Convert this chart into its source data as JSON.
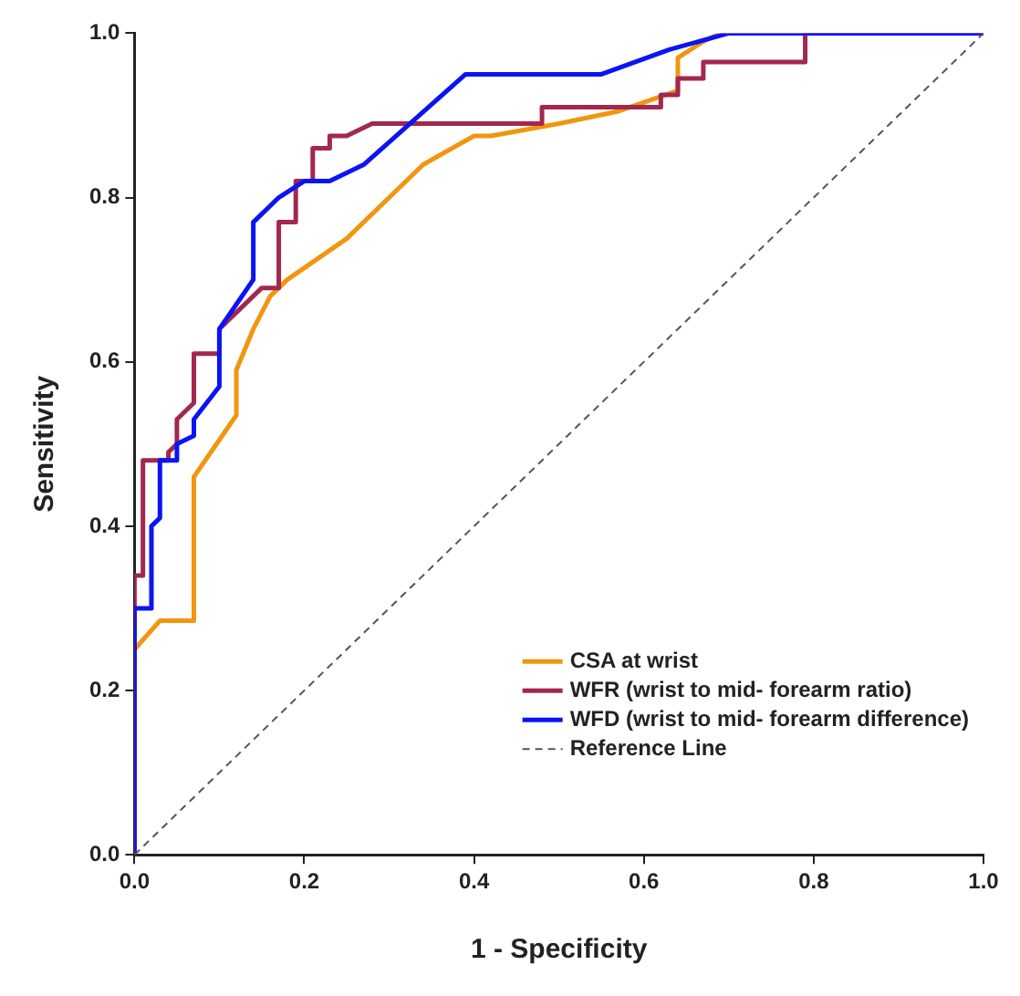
{
  "chart_data": {
    "type": "line",
    "xlabel": "1 - Specificity",
    "ylabel": "Sensitivity",
    "xlim": [
      0,
      1
    ],
    "ylim": [
      0,
      1
    ],
    "xticks": [
      {
        "value": 0,
        "label": "0.0"
      },
      {
        "value": 0.2,
        "label": "0.2"
      },
      {
        "value": 0.4,
        "label": "0.4"
      },
      {
        "value": 0.6,
        "label": "0.6"
      },
      {
        "value": 0.8,
        "label": "0.8"
      },
      {
        "value": 1,
        "label": "1.0"
      }
    ],
    "yticks": [
      {
        "value": 0,
        "label": "0.0"
      },
      {
        "value": 0.2,
        "label": "0.2"
      },
      {
        "value": 0.4,
        "label": "0.4"
      },
      {
        "value": 0.6,
        "label": "0.6"
      },
      {
        "value": 0.8,
        "label": "0.8"
      },
      {
        "value": 1,
        "label": "1.0"
      }
    ],
    "grid": false,
    "legend": "bottom right",
    "marker": "none",
    "series": [
      {
        "name": "CSA at wrist",
        "color": "#f0960f",
        "x": [
          0,
          0,
          0.03,
          0.07,
          0.07,
          0.11,
          0.12,
          0.12,
          0.14,
          0.16,
          0.18,
          0.25,
          0.34,
          0.4,
          0.42,
          0.5,
          0.57,
          0.64,
          0.64,
          0.67,
          0.69,
          1
        ],
        "values": [
          0,
          0.25,
          0.285,
          0.285,
          0.46,
          0.52,
          0.535,
          0.59,
          0.64,
          0.68,
          0.7,
          0.75,
          0.84,
          0.875,
          0.875,
          0.89,
          0.905,
          0.93,
          0.97,
          0.99,
          1,
          1
        ]
      },
      {
        "name": "WFR (wrist to mid- forearm ratio)",
        "color": "#a3274f",
        "x": [
          0,
          0,
          0.01,
          0.01,
          0.04,
          0.04,
          0.05,
          0.05,
          0.07,
          0.07,
          0.1,
          0.1,
          0.13,
          0.15,
          0.17,
          0.17,
          0.19,
          0.19,
          0.21,
          0.21,
          0.23,
          0.23,
          0.25,
          0.28,
          0.48,
          0.48,
          0.62,
          0.62,
          0.64,
          0.64,
          0.67,
          0.67,
          0.79,
          0.79,
          1
        ],
        "values": [
          0,
          0.34,
          0.34,
          0.48,
          0.48,
          0.49,
          0.5,
          0.53,
          0.55,
          0.61,
          0.61,
          0.64,
          0.67,
          0.69,
          0.69,
          0.77,
          0.77,
          0.82,
          0.82,
          0.86,
          0.86,
          0.875,
          0.875,
          0.89,
          0.89,
          0.91,
          0.91,
          0.925,
          0.925,
          0.945,
          0.945,
          0.965,
          0.965,
          1,
          1
        ]
      },
      {
        "name": "WFD (wrist to mid- forearm difference)",
        "color": "#0a14f5",
        "x": [
          0,
          0,
          0.02,
          0.02,
          0.03,
          0.03,
          0.05,
          0.05,
          0.07,
          0.07,
          0.1,
          0.1,
          0.14,
          0.14,
          0.17,
          0.2,
          0.23,
          0.27,
          0.39,
          0.55,
          0.63,
          0.7,
          1
        ],
        "values": [
          0,
          0.3,
          0.3,
          0.4,
          0.41,
          0.48,
          0.48,
          0.5,
          0.51,
          0.53,
          0.57,
          0.64,
          0.7,
          0.77,
          0.8,
          0.82,
          0.82,
          0.84,
          0.95,
          0.95,
          0.98,
          1,
          1
        ]
      },
      {
        "name": "Reference Line",
        "color": "#555555",
        "line_style": "dashed",
        "x": [
          0,
          1
        ],
        "values": [
          0,
          1
        ]
      }
    ]
  }
}
